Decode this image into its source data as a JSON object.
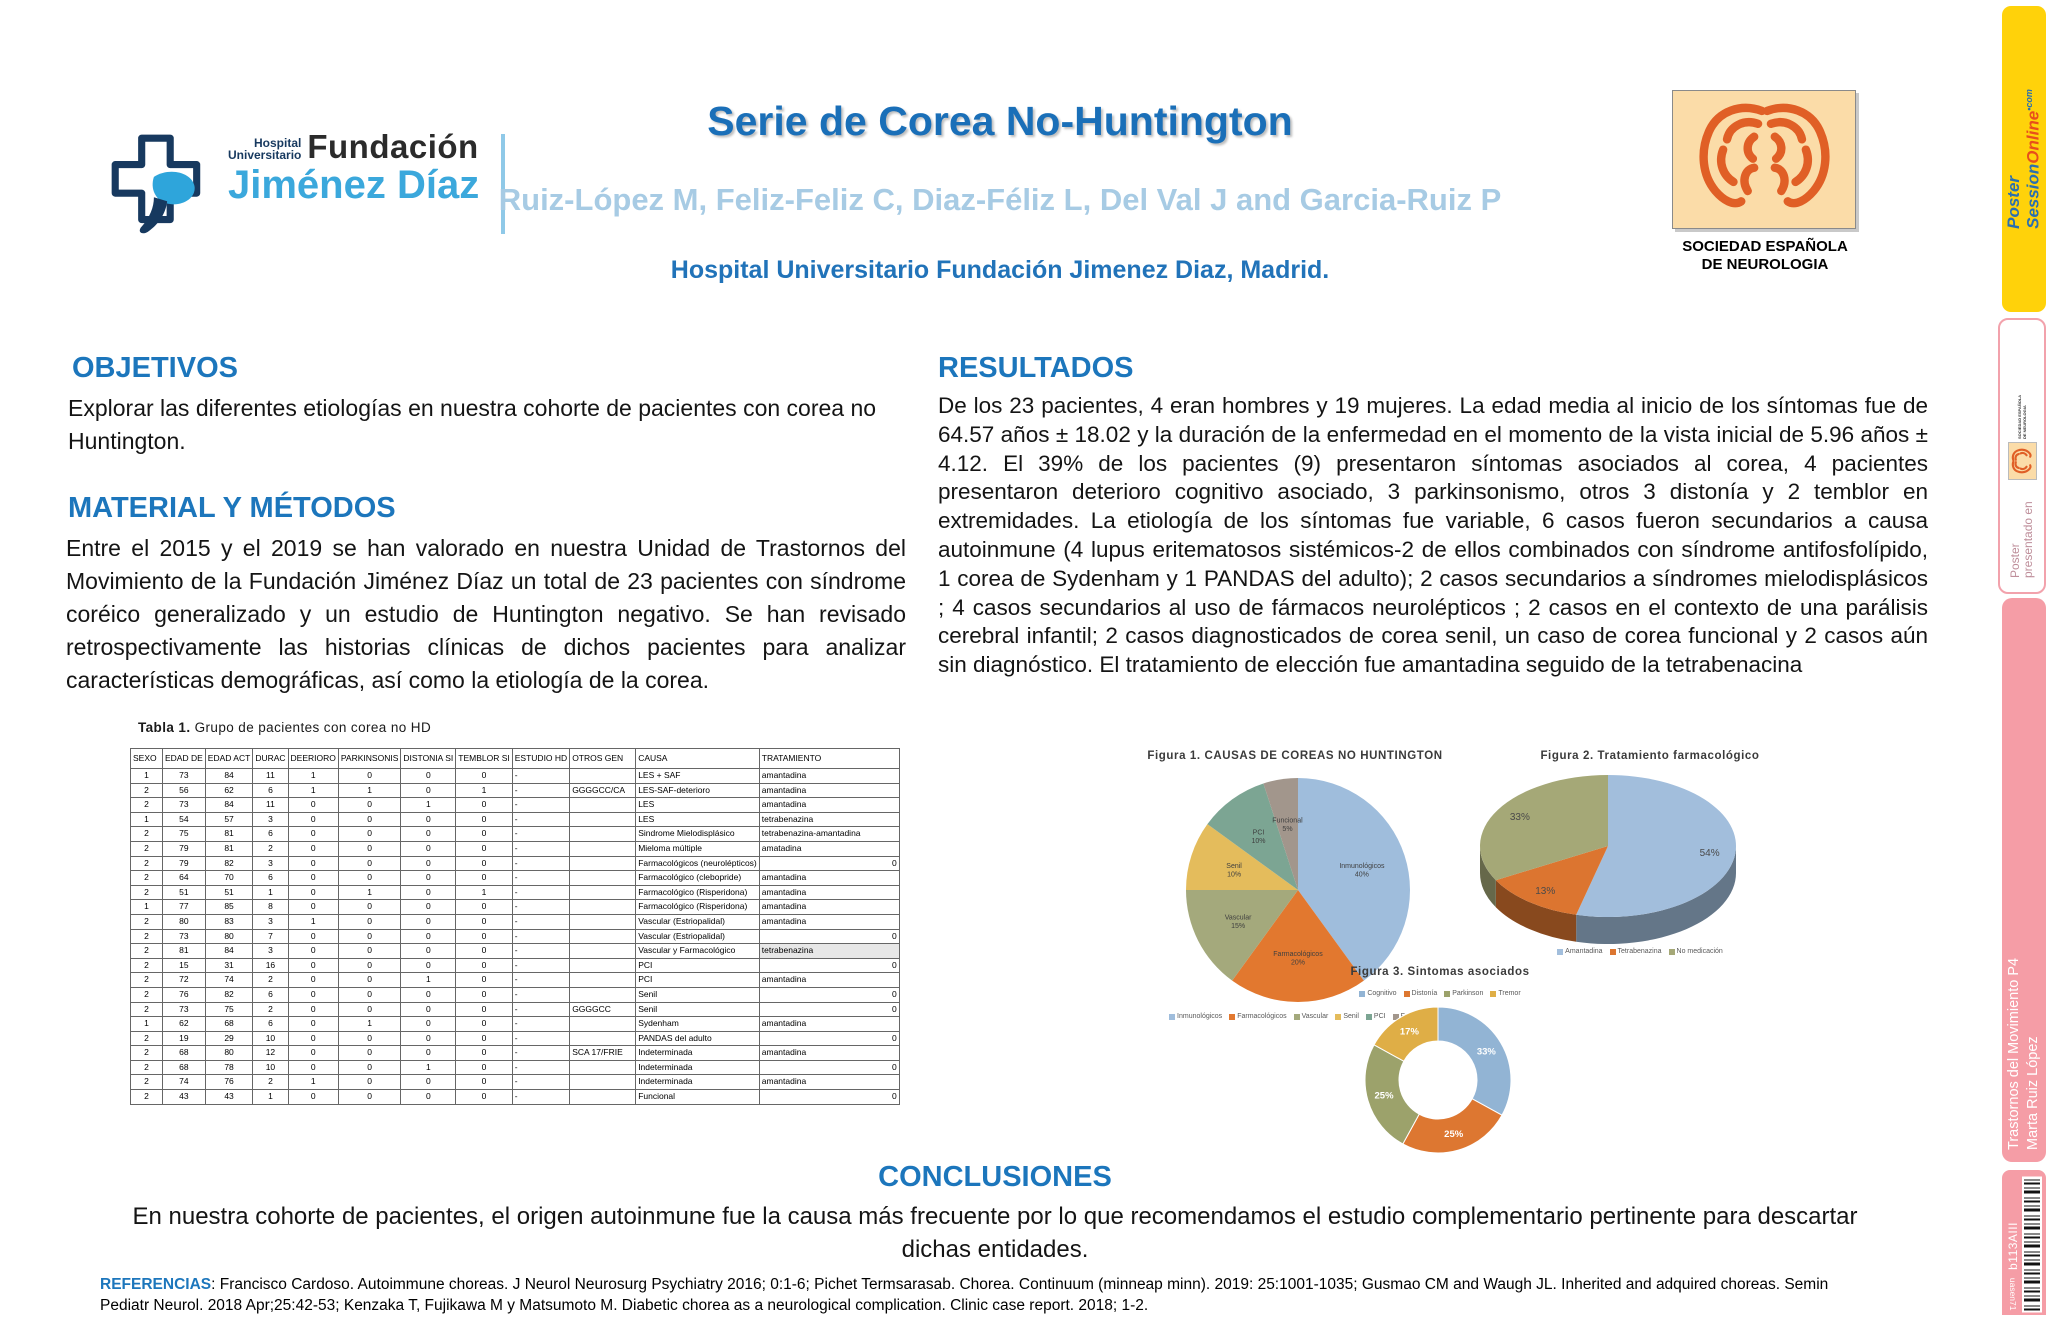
{
  "header": {
    "logo": {
      "hospital": "Hospital",
      "universitario": "Universitario",
      "fundacion": "Fundación",
      "jimenez": "Jiménez Díaz"
    },
    "title": "Serie de Corea No-Huntington",
    "authors": "Ruiz-López M, Feliz-Feliz C, Diaz-Féliz L, Del Val J and Garcia-Ruiz P",
    "institution": "Hospital Universitario Fundación Jimenez Diaz, Madrid.",
    "sen": {
      "caption1": "SOCIEDAD ESPAÑOLA",
      "caption2": "DE NEUROLOGIA"
    }
  },
  "sidebar": {
    "poster_session": {
      "line1": "Poster",
      "line2": "Session",
      "line2b": "Online",
      "com": "•com"
    },
    "presented": {
      "text": "Poster presentado en",
      "sen1": "SOCIEDAD ESPAÑOLA",
      "sen2": "DE NEUROLOGIA"
    },
    "session": {
      "line1": "Trastornos del Movimiento P4",
      "line2": "Marta Ruiz López"
    },
    "code": {
      "id": "b113AIII",
      "flip": "uasen71"
    }
  },
  "sections": {
    "objetivos": {
      "title": "OBJETIVOS",
      "body": "Explorar las diferentes etiologías en nuestra cohorte de pacientes con corea no Huntington."
    },
    "metodos": {
      "title": "MATERIAL Y MÉTODOS",
      "body": "Entre el 2015 y el 2019 se han valorado en nuestra Unidad de Trastornos del Movimiento de la Fundación Jiménez Díaz un total de 23 pacientes con síndrome coréico generalizado y un estudio de Huntington negativo. Se han revisado retrospectivamente las historias clínicas de dichos pacientes para analizar características demográficas, así como la etiología de la corea."
    },
    "resultados": {
      "title": "RESULTADOS",
      "body": "De los 23 pacientes, 4 eran hombres y 19 mujeres. La edad media al inicio de los síntomas fue de 64.57 años ± 18.02 y la duración de la enfermedad en el momento de la vista inicial de 5.96 años ± 4.12. El 39% de los pacientes (9) presentaron síntomas asociados al corea, 4 pacientes presentaron deterioro cognitivo asociado, 3 parkinsonismo, otros 3 distonía y 2 temblor en extremidades. La etiología de los síntomas fue variable, 6 casos fueron secundarios a causa autoinmune (4 lupus eritematosos sistémicos-2 de ellos combinados con síndrome antifosfolípido, 1 corea de Sydenham y 1 PANDAS del adulto); 2 casos secundarios a síndromes mielodisplásicos ; 4 casos secundarios al uso de fármacos neurolépticos ; 2 casos en el contexto de una parálisis cerebral infantil; 2 casos diagnosticados de corea senil, un caso de corea funcional y 2 casos aún sin diagnóstico. El tratamiento de elección fue amantadina seguido de la tetrabenacina"
    },
    "conclusiones": {
      "title": "CONCLUSIONES",
      "body": "En nuestra cohorte de pacientes, el origen autoinmune fue la causa más frecuente por lo que recomendamos el estudio complementario pertinente para descartar dichas entidades."
    },
    "referencias": {
      "label": "REFERENCIAS",
      "body": ": Francisco Cardoso. Autoimmune choreas. J Neurol Neurosurg Psychiatry 2016; 0:1-6;  Pichet Termsarasab. Chorea. Continuum (minneap minn). 2019: 25:1001-1035;  Gusmao CM and Waugh JL. Inherited and adquired choreas. Semin Pediatr Neurol. 2018 Apr;25:42-53; Kenzaka T, Fujikawa M y Matsumoto M.  Diabetic chorea as a neurological complication. Clinic case report. 2018; 1-2."
    }
  },
  "table": {
    "title_bold": "Tabla 1.",
    "title_rest": " Grupo de pacientes con corea no HD",
    "columns": [
      "SEXO",
      "EDAD DE",
      "EDAD ACT",
      "DURAC",
      "DEERIORO",
      "PARKINSONIS",
      "DISTONIA SI",
      "TEMBLOR SI",
      "ESTUDIO HD",
      "OTROS GEN",
      "CAUSA",
      "TRATAMIENTO"
    ],
    "rows": [
      [
        "1",
        "73",
        "84",
        "11",
        "1",
        "0",
        "0",
        "0",
        "-",
        "",
        "LES + SAF",
        "amantadina"
      ],
      [
        "2",
        "56",
        "62",
        "6",
        "1",
        "1",
        "0",
        "1",
        "-",
        "GGGGCC/CA",
        "LES-SAF-deterioro",
        "amantadina"
      ],
      [
        "2",
        "73",
        "84",
        "11",
        "0",
        "0",
        "1",
        "0",
        "-",
        "",
        "LES",
        "amantadina"
      ],
      [
        "1",
        "54",
        "57",
        "3",
        "0",
        "0",
        "0",
        "0",
        "-",
        "",
        "LES",
        "tetrabenazina"
      ],
      [
        "2",
        "75",
        "81",
        "6",
        "0",
        "0",
        "0",
        "0",
        "-",
        "",
        "Sindrome Mielodisplásico",
        "tetrabenazina-amantadina"
      ],
      [
        "2",
        "79",
        "81",
        "2",
        "0",
        "0",
        "0",
        "0",
        "-",
        "",
        "Mieloma múltiple",
        "amatadina"
      ],
      [
        "2",
        "79",
        "82",
        "3",
        "0",
        "0",
        "0",
        "0",
        "-",
        "",
        "Farmacológicos (neurolépticos)",
        "0"
      ],
      [
        "2",
        "64",
        "70",
        "6",
        "0",
        "0",
        "0",
        "0",
        "-",
        "",
        "Farmacológico (clebopride)",
        "amantadina"
      ],
      [
        "2",
        "51",
        "51",
        "1",
        "0",
        "1",
        "0",
        "1",
        "-",
        "",
        "Farmacológico (Risperidona)",
        "amantadina"
      ],
      [
        "1",
        "77",
        "85",
        "8",
        "0",
        "0",
        "0",
        "0",
        "-",
        "",
        "Farmacológico (Risperidona)",
        "amantadina"
      ],
      [
        "2",
        "80",
        "83",
        "3",
        "1",
        "0",
        "0",
        "0",
        "-",
        "",
        "Vascular (Estriopalidal)",
        "amantadina"
      ],
      [
        "2",
        "73",
        "80",
        "7",
        "0",
        "0",
        "0",
        "0",
        "-",
        "",
        "Vascular (Estriopalidal)",
        "0"
      ],
      [
        "2",
        "81",
        "84",
        "3",
        "0",
        "0",
        "0",
        "0",
        "-",
        "",
        "Vascular y Farmacológico",
        "tetrabenazina"
      ],
      [
        "2",
        "15",
        "31",
        "16",
        "0",
        "0",
        "0",
        "0",
        "-",
        "",
        "PCI",
        "0"
      ],
      [
        "2",
        "72",
        "74",
        "2",
        "0",
        "0",
        "1",
        "0",
        "-",
        "",
        "PCI",
        "amantadina"
      ],
      [
        "2",
        "76",
        "82",
        "6",
        "0",
        "0",
        "0",
        "0",
        "-",
        "",
        "Senil",
        "0"
      ],
      [
        "2",
        "73",
        "75",
        "2",
        "0",
        "0",
        "0",
        "0",
        "-",
        "GGGGCC",
        "Senil",
        "0"
      ],
      [
        "1",
        "62",
        "68",
        "6",
        "0",
        "1",
        "0",
        "0",
        "-",
        "",
        "Sydenham",
        "amantadina"
      ],
      [
        "2",
        "19",
        "29",
        "10",
        "0",
        "0",
        "0",
        "0",
        "-",
        "",
        "PANDAS del adulto",
        "0"
      ],
      [
        "2",
        "68",
        "80",
        "12",
        "0",
        "0",
        "0",
        "0",
        "-",
        "SCA 17/FRIE",
        "Indeterminada",
        "amantadina"
      ],
      [
        "2",
        "68",
        "78",
        "10",
        "0",
        "0",
        "1",
        "0",
        "-",
        "",
        "Indeterminada",
        "0"
      ],
      [
        "2",
        "74",
        "76",
        "2",
        "1",
        "0",
        "0",
        "0",
        "-",
        "",
        "Indeterminada",
        "amantadina"
      ],
      [
        "2",
        "43",
        "43",
        "1",
        "0",
        "0",
        "0",
        "0",
        "-",
        "",
        "Funcional",
        "0"
      ]
    ]
  },
  "chart_data": [
    {
      "type": "pie",
      "title": "Figura 1. CAUSAS DE COREAS NO HUNTINGTON",
      "labels": [
        "Inmunológicos",
        "Farmacológicos",
        "Vascular",
        "Senil",
        "PCI",
        "Funcional"
      ],
      "values": [
        40,
        20,
        15,
        10,
        10,
        5
      ],
      "unit": "%",
      "legend_position": "bottom",
      "colors": [
        "#9FBDDC",
        "#E2782F",
        "#A4A97C",
        "#E4BC5C",
        "#7CA593",
        "#A2968C"
      ]
    },
    {
      "type": "pie3d",
      "title": "Figura 2. Tratamiento farmacológico",
      "labels": [
        "Amantadina",
        "Tetrabenazina",
        "No medicación"
      ],
      "values": [
        54,
        13,
        33
      ],
      "unit": "%",
      "legend_position": "bottom",
      "colors": [
        "#A2BEDC",
        "#DC7530",
        "#A5A877"
      ]
    },
    {
      "type": "donut",
      "title": "Figura 3. Sintomas asociados",
      "labels": [
        "Cognitivo",
        "Distonía",
        "Parkinson",
        "Tremor"
      ],
      "values": [
        33,
        25,
        25,
        17
      ],
      "unit": "%",
      "legend_position": "top",
      "colors": [
        "#92B4D4",
        "#DD7731",
        "#9CA26B",
        "#DFAE46"
      ]
    }
  ]
}
